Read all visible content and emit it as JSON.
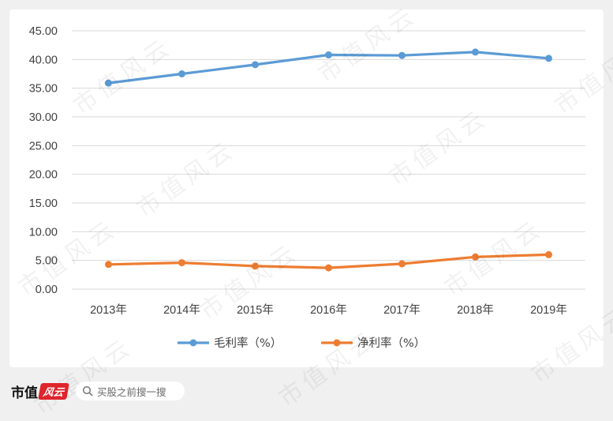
{
  "chart_data": {
    "type": "line",
    "categories": [
      "2013年",
      "2014年",
      "2015年",
      "2016年",
      "2017年",
      "2018年",
      "2019年"
    ],
    "series": [
      {
        "name": "毛利率（%）",
        "color": "#5b9bd5",
        "values": [
          35.9,
          37.5,
          39.1,
          40.8,
          40.7,
          41.3,
          40.2
        ]
      },
      {
        "name": "净利率（%）",
        "color": "#ed7d31",
        "values": [
          4.3,
          4.6,
          4.0,
          3.7,
          4.4,
          5.6,
          6.0
        ]
      }
    ],
    "y_ticks": [
      "0.00",
      "5.00",
      "10.00",
      "15.00",
      "20.00",
      "25.00",
      "30.00",
      "35.00",
      "40.00",
      "45.00"
    ],
    "ylim": [
      0,
      45
    ],
    "grid": true,
    "legend_position": "bottom",
    "title": "",
    "xlabel": "",
    "ylabel": ""
  },
  "watermark": {
    "text": "市值风云"
  },
  "footer": {
    "brand_text": "市值",
    "brand_badge": "风云",
    "search_placeholder": "买股之前搜一搜"
  }
}
